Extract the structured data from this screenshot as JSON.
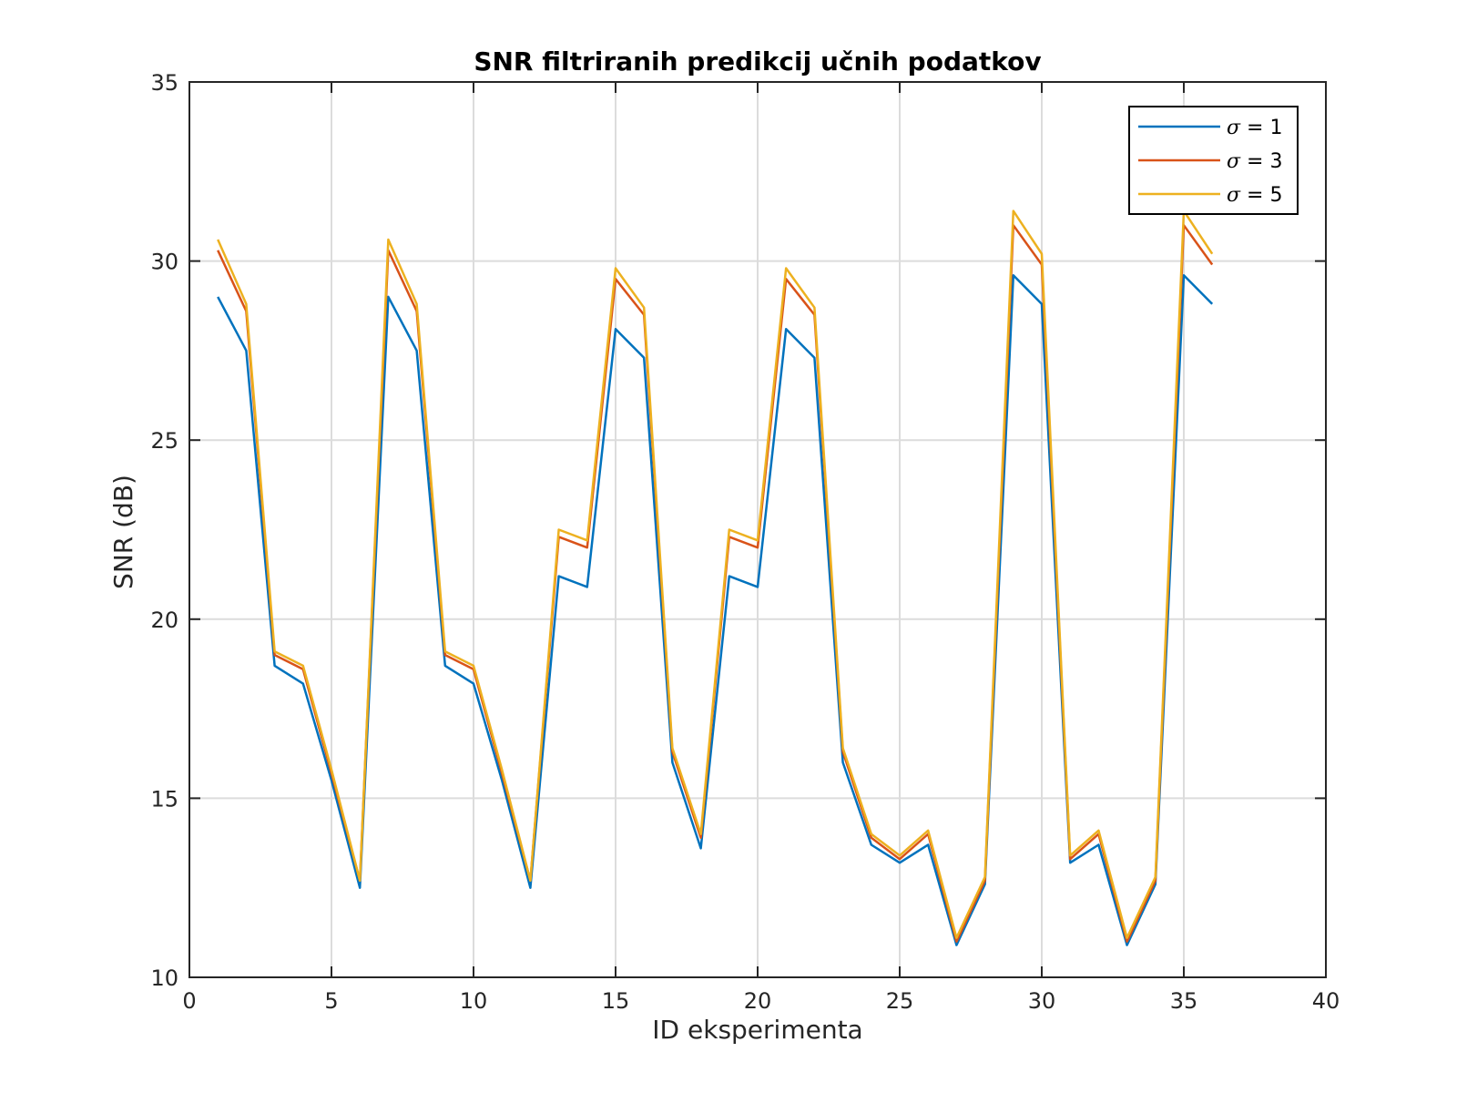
{
  "chart_data": {
    "type": "line",
    "title": "SNR filtriranih predikcij učnih podatkov",
    "xlabel": "ID eksperimenta",
    "ylabel": "SNR (dB)",
    "xlim": [
      0,
      40
    ],
    "ylim": [
      10,
      35
    ],
    "xticks": [
      0,
      5,
      10,
      15,
      20,
      25,
      30,
      35,
      40
    ],
    "yticks": [
      10,
      15,
      20,
      25,
      30,
      35
    ],
    "grid": true,
    "legend_position": "top-right",
    "x": [
      1,
      2,
      3,
      4,
      5,
      6,
      7,
      8,
      9,
      10,
      11,
      12,
      13,
      14,
      15,
      16,
      17,
      18,
      19,
      20,
      21,
      22,
      23,
      24,
      25,
      26,
      27,
      28,
      29,
      30,
      31,
      32,
      33,
      34,
      35,
      36
    ],
    "series": [
      {
        "name": "σ = 1",
        "symbol": "σ",
        "value_label": " = 1",
        "color": "#0072BD",
        "values": [
          29.0,
          27.5,
          18.7,
          18.2,
          15.5,
          12.5,
          29.0,
          27.5,
          18.7,
          18.2,
          15.5,
          12.5,
          21.2,
          20.9,
          28.1,
          27.3,
          16.0,
          13.6,
          21.2,
          20.9,
          28.1,
          27.3,
          16.0,
          13.7,
          13.2,
          13.7,
          10.9,
          12.6,
          29.6,
          28.8,
          13.2,
          13.7,
          10.9,
          12.6,
          29.6,
          28.8
        ]
      },
      {
        "name": "σ = 3",
        "symbol": "σ",
        "value_label": " = 3",
        "color": "#D95319",
        "values": [
          30.3,
          28.6,
          19.0,
          18.6,
          15.7,
          12.7,
          30.3,
          28.6,
          19.0,
          18.6,
          15.7,
          12.7,
          22.3,
          22.0,
          29.5,
          28.5,
          16.3,
          13.9,
          22.3,
          22.0,
          29.5,
          28.5,
          16.3,
          13.9,
          13.3,
          14.0,
          11.0,
          12.7,
          31.0,
          29.9,
          13.3,
          14.0,
          11.0,
          12.7,
          31.0,
          29.9
        ]
      },
      {
        "name": "σ = 5",
        "symbol": "σ",
        "value_label": " = 5",
        "color": "#EDB120",
        "values": [
          30.6,
          28.8,
          19.1,
          18.7,
          15.8,
          12.7,
          30.6,
          28.8,
          19.1,
          18.7,
          15.8,
          12.7,
          22.5,
          22.2,
          29.8,
          28.7,
          16.4,
          14.0,
          22.5,
          22.2,
          29.8,
          28.7,
          16.4,
          14.0,
          13.4,
          14.1,
          11.1,
          12.8,
          31.4,
          30.2,
          13.4,
          14.1,
          11.1,
          12.8,
          31.4,
          30.2
        ]
      }
    ]
  }
}
